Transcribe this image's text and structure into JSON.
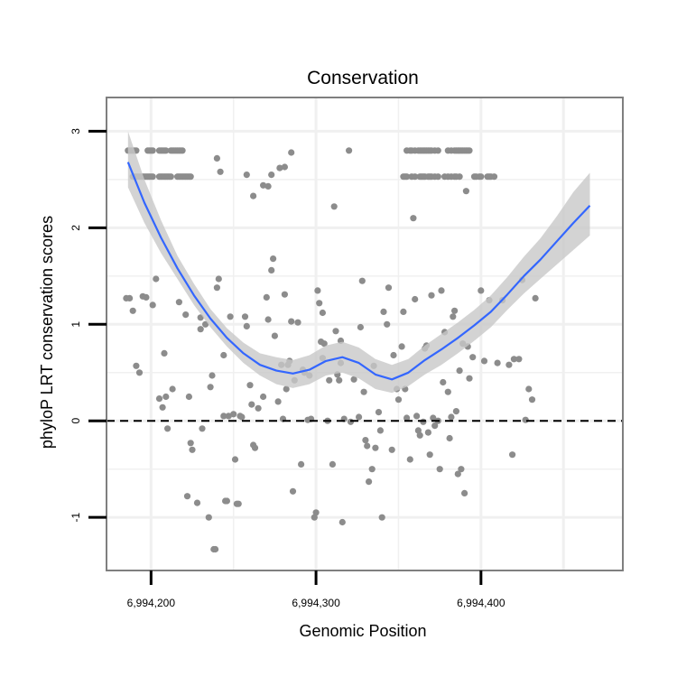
{
  "chart_data": {
    "type": "scatter",
    "title": "Conservation",
    "xlabel": "Genomic Position",
    "ylabel": "phyloP LRT conservation scores",
    "x_ticks": [
      6994200,
      6994300,
      6994400
    ],
    "x_tick_labels": [
      "6,994,200",
      "6,994,300",
      "6,994,400"
    ],
    "y_ticks": [
      -1,
      0,
      1,
      2,
      3
    ],
    "y_tick_labels": [
      "-1",
      "0",
      "1",
      "2",
      "3"
    ],
    "xlim": [
      6994173,
      6994486
    ],
    "ylim": [
      -1.55,
      3.35
    ],
    "grid": true,
    "reference_line_y": 0,
    "colors": {
      "points": "#8c8c8c",
      "smooth_line": "#3366ff",
      "ribbon": "#c8c8c8",
      "panel_border": "#7f7f7f",
      "grid": "#f0f0f0",
      "reference_line": "#000000"
    },
    "points": [
      [
        6994186,
        2.8
      ],
      [
        6994187,
        2.8
      ],
      [
        6994188,
        2.8
      ],
      [
        6994189,
        2.8
      ],
      [
        6994190,
        2.8
      ],
      [
        6994191,
        2.8
      ],
      [
        6994198,
        2.8
      ],
      [
        6994199,
        2.8
      ],
      [
        6994200,
        2.8
      ],
      [
        6994201,
        2.8
      ],
      [
        6994205,
        2.8
      ],
      [
        6994206,
        2.8
      ],
      [
        6994207,
        2.8
      ],
      [
        6994208,
        2.8
      ],
      [
        6994209,
        2.8
      ],
      [
        6994212,
        2.8
      ],
      [
        6994213,
        2.8
      ],
      [
        6994214,
        2.8
      ],
      [
        6994215,
        2.8
      ],
      [
        6994216,
        2.8
      ],
      [
        6994217,
        2.8
      ],
      [
        6994218,
        2.8
      ],
      [
        6994219,
        2.8
      ],
      [
        6994240,
        2.72
      ],
      [
        6994189,
        2.53
      ],
      [
        6994190,
        2.53
      ],
      [
        6994191,
        2.53
      ],
      [
        6994192,
        2.53
      ],
      [
        6994193,
        2.53
      ],
      [
        6994194,
        2.53
      ],
      [
        6994195,
        2.53
      ],
      [
        6994196,
        2.53
      ],
      [
        6994197,
        2.53
      ],
      [
        6994198,
        2.53
      ],
      [
        6994199,
        2.53
      ],
      [
        6994200,
        2.53
      ],
      [
        6994201,
        2.53
      ],
      [
        6994205,
        2.53
      ],
      [
        6994206,
        2.53
      ],
      [
        6994207,
        2.53
      ],
      [
        6994208,
        2.53
      ],
      [
        6994209,
        2.53
      ],
      [
        6994210,
        2.53
      ],
      [
        6994211,
        2.53
      ],
      [
        6994212,
        2.53
      ],
      [
        6994216,
        2.53
      ],
      [
        6994217,
        2.53
      ],
      [
        6994218,
        2.53
      ],
      [
        6994219,
        2.53
      ],
      [
        6994220,
        2.53
      ],
      [
        6994221,
        2.53
      ],
      [
        6994222,
        2.53
      ],
      [
        6994223,
        2.53
      ],
      [
        6994224,
        2.53
      ],
      [
        6994242,
        2.58
      ],
      [
        6994185,
        1.27
      ],
      [
        6994187,
        1.27
      ],
      [
        6994189,
        1.14
      ],
      [
        6994191,
        0.57
      ],
      [
        6994193,
        0.5
      ],
      [
        6994195,
        1.29
      ],
      [
        6994197,
        1.28
      ],
      [
        6994201,
        1.2
      ],
      [
        6994203,
        1.47
      ],
      [
        6994205,
        0.23
      ],
      [
        6994207,
        0.14
      ],
      [
        6994208,
        0.7
      ],
      [
        6994209,
        0.25
      ],
      [
        6994210,
        -0.08
      ],
      [
        6994213,
        0.33
      ],
      [
        6994217,
        1.23
      ],
      [
        6994221,
        1.1
      ],
      [
        6994222,
        -0.78
      ],
      [
        6994223,
        0.25
      ],
      [
        6994224,
        -0.23
      ],
      [
        6994225,
        -0.3
      ],
      [
        6994228,
        -0.85
      ],
      [
        6994230,
        1.07
      ],
      [
        6994231,
        -0.08
      ],
      [
        6994233,
        1.0
      ],
      [
        6994235,
        -1.0
      ],
      [
        6994236,
        0.35
      ],
      [
        6994237,
        0.47
      ],
      [
        6994238,
        -1.33
      ],
      [
        6994239,
        -1.33
      ],
      [
        6994240,
        1.38
      ],
      [
        6994241,
        1.47
      ],
      [
        6994244,
        0.68
      ],
      [
        6994244,
        0.05
      ],
      [
        6994245,
        -0.83
      ],
      [
        6994246,
        -0.83
      ],
      [
        6994247,
        0.05
      ],
      [
        6994248,
        1.08
      ],
      [
        6994250,
        0.07
      ],
      [
        6994251,
        -0.4
      ],
      [
        6994252,
        -0.86
      ],
      [
        6994253,
        -0.86
      ],
      [
        6994254,
        0.05
      ],
      [
        6994255,
        0.04
      ],
      [
        6994257,
        1.08
      ],
      [
        6994258,
        0.98
      ],
      [
        6994260,
        0.37
      ],
      [
        6994261,
        0.17
      ],
      [
        6994262,
        -0.25
      ],
      [
        6994263,
        -0.28
      ],
      [
        6994265,
        0.13
      ],
      [
        6994268,
        0.25
      ],
      [
        6994270,
        1.28
      ],
      [
        6994273,
        1.56
      ],
      [
        6994274,
        1.68
      ],
      [
        6994275,
        0.88
      ],
      [
        6994277,
        0.2
      ],
      [
        6994279,
        0.58
      ],
      [
        6994280,
        0.02
      ],
      [
        6994281,
        1.31
      ],
      [
        6994282,
        0.33
      ],
      [
        6994283,
        0.58
      ],
      [
        6994284,
        0.62
      ],
      [
        6994285,
        1.03
      ],
      [
        6994286,
        -0.73
      ],
      [
        6994287,
        0.42
      ],
      [
        6994289,
        1.02
      ],
      [
        6994291,
        -0.45
      ],
      [
        6994292,
        0.53
      ],
      [
        6994293,
        0.5
      ],
      [
        6994295,
        0.01
      ],
      [
        6994296,
        0.47
      ],
      [
        6994297,
        0.02
      ],
      [
        6994299,
        -1.0
      ],
      [
        6994300,
        -0.95
      ],
      [
        6994301,
        1.35
      ],
      [
        6994302,
        1.22
      ],
      [
        6994303,
        0.82
      ],
      [
        6994304,
        1.12
      ],
      [
        6994305,
        0.8
      ],
      [
        6994307,
        0.0
      ],
      [
        6994308,
        0.42
      ],
      [
        6994310,
        -0.45
      ],
      [
        6994311,
        2.22
      ],
      [
        6994312,
        0.93
      ],
      [
        6994313,
        0.48
      ],
      [
        6994314,
        0.42
      ],
      [
        6994315,
        0.6
      ],
      [
        6994316,
        -1.05
      ],
      [
        6994317,
        0.02
      ],
      [
        6994320,
        2.8
      ],
      [
        6994321,
        -0.01
      ],
      [
        6994323,
        0.43
      ],
      [
        6994326,
        0.04
      ],
      [
        6994327,
        0.97
      ],
      [
        6994328,
        1.45
      ],
      [
        6994329,
        0.3
      ],
      [
        6994330,
        -0.2
      ],
      [
        6994331,
        -0.26
      ],
      [
        6994332,
        -0.63
      ],
      [
        6994334,
        -0.5
      ],
      [
        6994335,
        0.57
      ],
      [
        6994336,
        -0.28
      ],
      [
        6994338,
        0.09
      ],
      [
        6994339,
        -0.1
      ],
      [
        6994340,
        -1.0
      ],
      [
        6994341,
        1.13
      ],
      [
        6994343,
        1.0
      ],
      [
        6994344,
        1.38
      ],
      [
        6994346,
        -0.3
      ],
      [
        6994347,
        0.68
      ],
      [
        6994349,
        0.33
      ],
      [
        6994350,
        0.22
      ],
      [
        6994352,
        0.77
      ],
      [
        6994353,
        1.13
      ],
      [
        6994354,
        0.33
      ],
      [
        6994355,
        0.03
      ],
      [
        6994357,
        -0.4
      ],
      [
        6994359,
        2.1
      ],
      [
        6994360,
        1.26
      ],
      [
        6994361,
        0.05
      ],
      [
        6994362,
        -0.1
      ],
      [
        6994363,
        -0.15
      ],
      [
        6994365,
        -0.01
      ],
      [
        6994366,
        0.75
      ],
      [
        6994367,
        0.78
      ],
      [
        6994368,
        -0.12
      ],
      [
        6994369,
        -0.35
      ],
      [
        6994370,
        1.3
      ],
      [
        6994371,
        0.03
      ],
      [
        6994372,
        -0.05
      ],
      [
        6994374,
        0.0
      ],
      [
        6994375,
        -0.5
      ],
      [
        6994376,
        1.35
      ],
      [
        6994377,
        0.4
      ],
      [
        6994378,
        0.92
      ],
      [
        6994380,
        0.3
      ],
      [
        6994381,
        -0.18
      ],
      [
        6994382,
        0.04
      ],
      [
        6994383,
        1.08
      ],
      [
        6994384,
        1.14
      ],
      [
        6994385,
        0.1
      ],
      [
        6994386,
        -0.55
      ],
      [
        6994387,
        0.52
      ],
      [
        6994388,
        -0.5
      ],
      [
        6994389,
        0.8
      ],
      [
        6994390,
        -0.75
      ],
      [
        6994391,
        2.38
      ],
      [
        6994392,
        0.77
      ],
      [
        6994393,
        0.44
      ],
      [
        6994395,
        0.66
      ],
      [
        6994400,
        1.35
      ],
      [
        6994402,
        0.62
      ],
      [
        6994405,
        1.25
      ],
      [
        6994410,
        0.6
      ],
      [
        6994413,
        1.25
      ],
      [
        6994417,
        0.58
      ],
      [
        6994419,
        -0.35
      ],
      [
        6994420,
        0.64
      ],
      [
        6994423,
        0.64
      ],
      [
        6994425,
        1.46
      ],
      [
        6994427,
        0.01
      ],
      [
        6994429,
        0.33
      ],
      [
        6994431,
        0.22
      ],
      [
        6994433,
        1.27
      ],
      [
        6994258,
        2.55
      ],
      [
        6994262,
        2.33
      ],
      [
        6994268,
        2.44
      ],
      [
        6994271,
        2.43
      ],
      [
        6994273,
        2.55
      ],
      [
        6994278,
        2.62
      ],
      [
        6994281,
        2.63
      ],
      [
        6994285,
        2.78
      ],
      [
        6994230,
        0.95
      ],
      [
        6994271,
        1.05
      ],
      [
        6994304,
        0.65
      ],
      [
        6994315,
        0.83
      ],
      [
        6994353,
        2.53
      ],
      [
        6994354,
        2.53
      ],
      [
        6994355,
        2.53
      ],
      [
        6994358,
        2.53
      ],
      [
        6994360,
        2.53
      ],
      [
        6994363,
        2.53
      ],
      [
        6994364,
        2.53
      ],
      [
        6994365,
        2.53
      ],
      [
        6994366,
        2.53
      ],
      [
        6994368,
        2.53
      ],
      [
        6994369,
        2.53
      ],
      [
        6994370,
        2.53
      ],
      [
        6994372,
        2.53
      ],
      [
        6994374,
        2.53
      ],
      [
        6994378,
        2.53
      ],
      [
        6994380,
        2.53
      ],
      [
        6994382,
        2.53
      ],
      [
        6994384,
        2.53
      ],
      [
        6994385,
        2.53
      ],
      [
        6994387,
        2.53
      ],
      [
        6994396,
        2.53
      ],
      [
        6994397,
        2.53
      ],
      [
        6994399,
        2.53
      ],
      [
        6994400,
        2.53
      ],
      [
        6994404,
        2.53
      ],
      [
        6994405,
        2.53
      ],
      [
        6994406,
        2.53
      ],
      [
        6994408,
        2.53
      ],
      [
        6994355,
        2.8
      ],
      [
        6994357,
        2.8
      ],
      [
        6994358,
        2.8
      ],
      [
        6994360,
        2.8
      ],
      [
        6994362,
        2.8
      ],
      [
        6994363,
        2.8
      ],
      [
        6994364,
        2.8
      ],
      [
        6994365,
        2.8
      ],
      [
        6994366,
        2.8
      ],
      [
        6994367,
        2.8
      ],
      [
        6994368,
        2.8
      ],
      [
        6994369,
        2.8
      ],
      [
        6994370,
        2.8
      ],
      [
        6994372,
        2.8
      ],
      [
        6994374,
        2.8
      ],
      [
        6994380,
        2.8
      ],
      [
        6994382,
        2.8
      ],
      [
        6994384,
        2.8
      ],
      [
        6994385,
        2.8
      ],
      [
        6994386,
        2.8
      ],
      [
        6994387,
        2.8
      ],
      [
        6994388,
        2.8
      ],
      [
        6994389,
        2.8
      ],
      [
        6994390,
        2.8
      ],
      [
        6994391,
        2.8
      ],
      [
        6994392,
        2.8
      ],
      [
        6994393,
        2.8
      ]
    ],
    "smooth": {
      "x": [
        6994186,
        6994196,
        6994206,
        6994216,
        6994226,
        6994236,
        6994246,
        6994256,
        6994266,
        6994276,
        6994286,
        6994296,
        6994306,
        6994316,
        6994326,
        6994336,
        6994346,
        6994356,
        6994366,
        6994376,
        6994386,
        6994396,
        6994406,
        6994416,
        6994426,
        6994436,
        6994446,
        6994456,
        6994466
      ],
      "y": [
        2.68,
        2.26,
        1.9,
        1.58,
        1.3,
        1.06,
        0.86,
        0.7,
        0.58,
        0.52,
        0.49,
        0.53,
        0.62,
        0.66,
        0.6,
        0.48,
        0.43,
        0.5,
        0.63,
        0.74,
        0.86,
        0.99,
        1.13,
        1.31,
        1.5,
        1.67,
        1.86,
        2.05,
        2.23
      ],
      "lower": [
        2.42,
        2.05,
        1.74,
        1.47,
        1.2,
        0.97,
        0.77,
        0.6,
        0.47,
        0.38,
        0.34,
        0.38,
        0.47,
        0.5,
        0.44,
        0.33,
        0.29,
        0.36,
        0.48,
        0.58,
        0.7,
        0.83,
        0.97,
        1.15,
        1.32,
        1.47,
        1.62,
        1.77,
        1.92
      ],
      "upper": [
        3.0,
        2.5,
        2.08,
        1.71,
        1.42,
        1.16,
        0.96,
        0.81,
        0.7,
        0.66,
        0.63,
        0.68,
        0.78,
        0.82,
        0.76,
        0.64,
        0.58,
        0.64,
        0.78,
        0.9,
        1.02,
        1.15,
        1.3,
        1.49,
        1.7,
        1.89,
        2.12,
        2.37,
        2.57
      ]
    }
  }
}
